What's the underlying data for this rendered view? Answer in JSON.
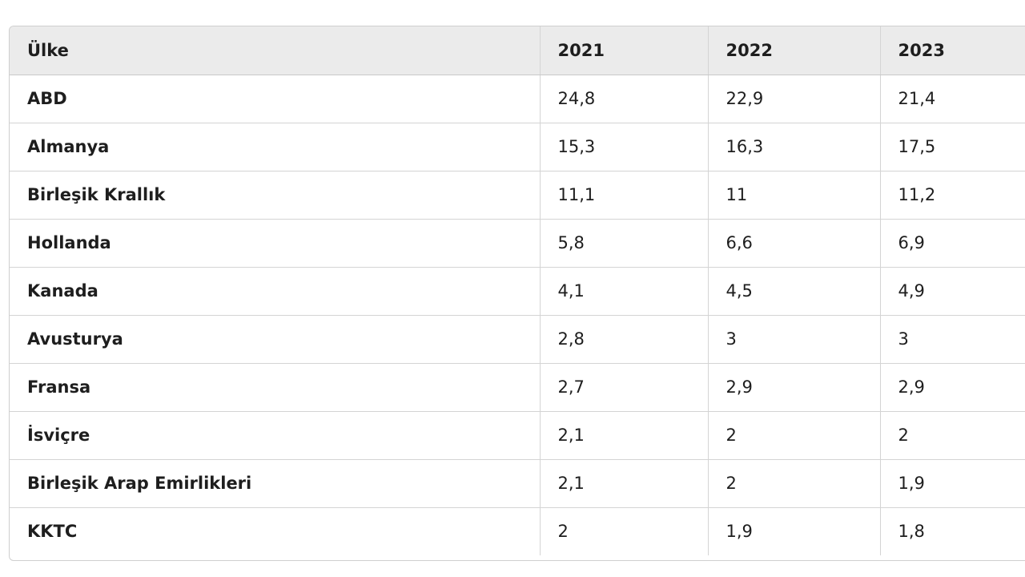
{
  "chart_data": {
    "type": "table",
    "columns": [
      "Ülke",
      "2021",
      "2022",
      "2023"
    ],
    "rows": [
      {
        "country": "ABD",
        "values": [
          "24,8",
          "22,9",
          "21,4"
        ]
      },
      {
        "country": "Almanya",
        "values": [
          "15,3",
          "16,3",
          "17,5"
        ]
      },
      {
        "country": "Birleşik Krallık",
        "values": [
          "11,1",
          "11",
          "11,2"
        ]
      },
      {
        "country": "Hollanda",
        "values": [
          "5,8",
          "6,6",
          "6,9"
        ]
      },
      {
        "country": "Kanada",
        "values": [
          "4,1",
          "4,5",
          "4,9"
        ]
      },
      {
        "country": "Avusturya",
        "values": [
          "2,8",
          "3",
          "3"
        ]
      },
      {
        "country": "Fransa",
        "values": [
          "2,7",
          "2,9",
          "2,9"
        ]
      },
      {
        "country": "İsviçre",
        "values": [
          "2,1",
          "2",
          "2"
        ]
      },
      {
        "country": "Birleşik Arap Emirlikleri",
        "values": [
          "2,1",
          "2",
          "1,9"
        ]
      },
      {
        "country": "KKTC",
        "values": [
          "2",
          "1,9",
          "1,8"
        ]
      }
    ]
  }
}
